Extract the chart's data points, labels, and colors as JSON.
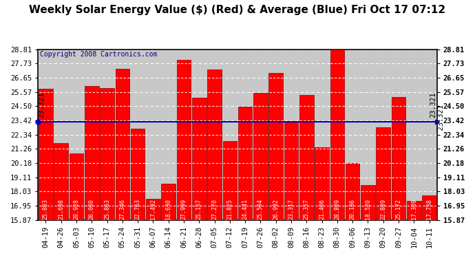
{
  "title": "Weekly Solar Energy Value ($) (Red) & Average (Blue) Fri Oct 17 07:12",
  "copyright": "Copyright 2008 Cartronics.com",
  "categories": [
    "04-19",
    "04-26",
    "05-03",
    "05-10",
    "05-17",
    "05-24",
    "05-31",
    "06-07",
    "06-14",
    "06-21",
    "06-28",
    "07-05",
    "07-12",
    "07-19",
    "07-26",
    "08-02",
    "08-09",
    "08-16",
    "08-23",
    "08-30",
    "09-06",
    "09-13",
    "09-20",
    "09-27",
    "10-04",
    "10-11"
  ],
  "values": [
    25.803,
    21.698,
    20.928,
    26.0,
    25.863,
    27.346,
    22.763,
    17.492,
    18.63,
    27.999,
    25.157,
    27.27,
    21.825,
    24.441,
    25.504,
    26.992,
    23.317,
    25.357,
    21.406,
    28.809,
    20.186,
    18.52,
    22.889,
    25.172,
    17.309,
    17.758
  ],
  "average": 23.321,
  "bar_color": "#ff0000",
  "avg_line_color": "#0000bb",
  "background_color": "#ffffff",
  "plot_bg_color": "#c8c8c8",
  "grid_color": "#ffffff",
  "title_color": "#000000",
  "bar_label_color": "#ffffff",
  "ylim_min": 15.87,
  "ylim_max": 28.81,
  "yticks": [
    15.87,
    16.95,
    18.03,
    19.11,
    20.18,
    21.26,
    22.34,
    23.42,
    24.5,
    25.57,
    26.65,
    27.73,
    28.81
  ],
  "avg_label": "23.321",
  "title_fontsize": 11,
  "bar_label_fontsize": 6.0,
  "tick_fontsize": 7.5,
  "copyright_fontsize": 7
}
